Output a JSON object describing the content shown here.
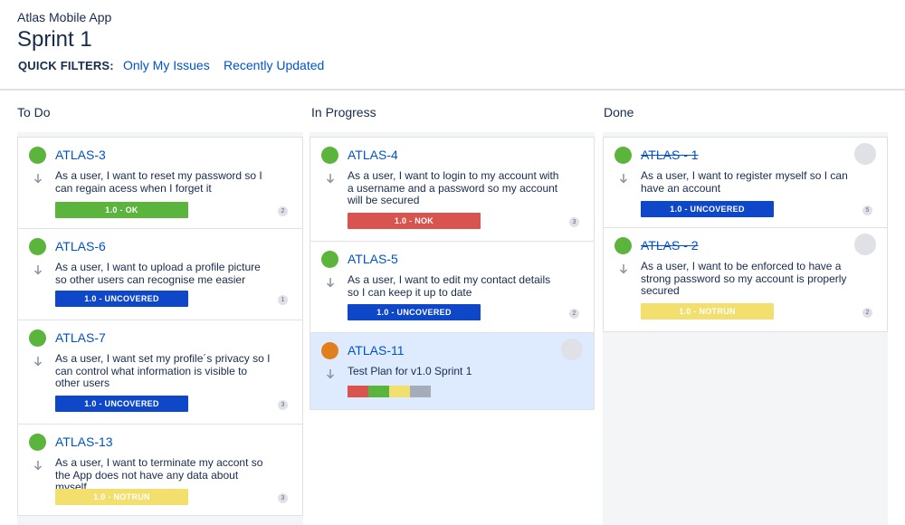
{
  "header": {
    "project": "Atlas Mobile App",
    "sprint": "Sprint 1",
    "quick_filters_label": "QUICK FILTERS:",
    "filters": [
      "Only My Issues",
      "Recently Updated"
    ]
  },
  "columns": {
    "todo": {
      "title": "To Do",
      "cards": [
        {
          "key": "ATLAS-3",
          "summary": "As a user, I want to reset my password so I can regain acess when I forget it",
          "badge": "1.0 - OK",
          "badge_color": "#5bb53c",
          "count": "2"
        },
        {
          "key": "ATLAS-6",
          "summary": "As a user, I want to upload a profile picture so other users can recognise me easier",
          "badge": "1.0 - UNCOVERED",
          "badge_color": "#0f47c9",
          "count": "1"
        },
        {
          "key": "ATLAS-7",
          "summary": "As a user, I want set my profile´s privacy so I can control what information is visible to other users",
          "badge": "1.0 - UNCOVERED",
          "badge_color": "#0f47c9",
          "count": "3"
        },
        {
          "key": "ATLAS-13",
          "summary": "As a user, I want to terminate my accont so the App does not have any data about myself",
          "badge": "1.0 - NOTRUN",
          "badge_color": "#f2df6d",
          "count": "3"
        }
      ]
    },
    "in_progress": {
      "title": "In Progress",
      "cards": [
        {
          "key": "ATLAS-4",
          "summary": "As a user, I want to login to my account with a username and a password so my account will be secured",
          "badge": "1.0 - NOK",
          "badge_color": "#d9534f",
          "count": "3"
        },
        {
          "key": "ATLAS-5",
          "summary": "As a user, I want to edit my contact details so I can keep it up to date",
          "badge": "1.0 - UNCOVERED",
          "badge_color": "#0f47c9",
          "count": "2"
        },
        {
          "key": "ATLAS-11",
          "summary": "Test Plan for v1.0 Sprint 1",
          "testbar_colors": [
            "#d9534f",
            "#5bb53c",
            "#f2df6d",
            "#a5adba"
          ]
        }
      ]
    },
    "done": {
      "title": "Done",
      "cards": [
        {
          "key": "ATLAS - 1",
          "summary": "As a user, I want to register myself so I can have an account",
          "badge": "1.0 - UNCOVERED",
          "badge_color": "#0f47c9",
          "count": "5"
        },
        {
          "key": "ATLAS - 2",
          "summary": "As a user, I want to be enforced to have a strong password so my account is properly secured",
          "badge": "1.0 - NOTRUN",
          "badge_color": "#f2df6d",
          "count": "2"
        }
      ]
    }
  },
  "icons": {
    "priority": "arrow-down-icon",
    "status": "status-dot-icon",
    "avatar": "avatar-placeholder-icon"
  }
}
